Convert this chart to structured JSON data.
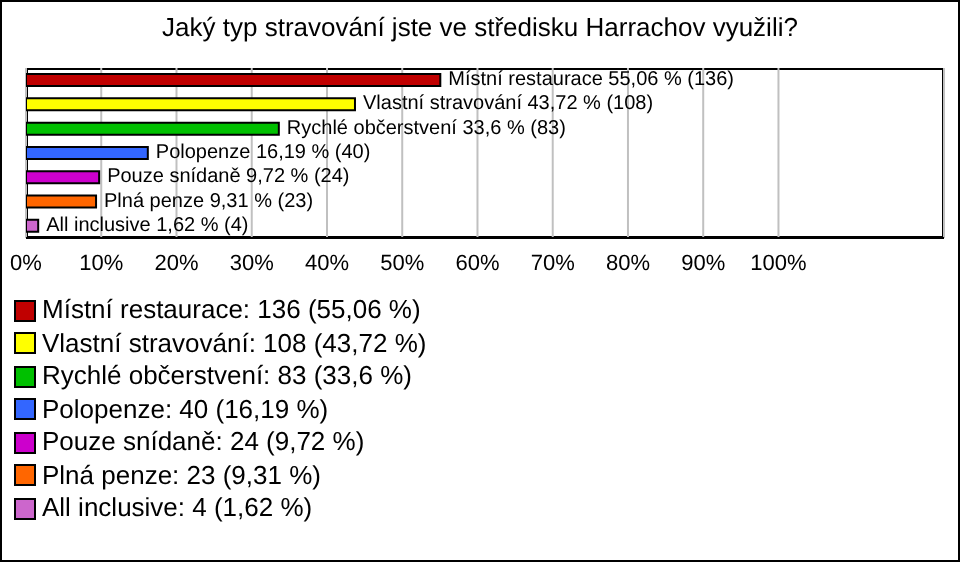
{
  "chart_data": {
    "type": "bar",
    "orientation": "horizontal",
    "title": "Jaký typ stravování jste ve středisku Harrachov využili?",
    "categories": [
      null,
      null,
      null,
      null,
      null,
      null,
      null
    ],
    "values": [
      55.06,
      43.72,
      33.6,
      16.19,
      9.72,
      9.31,
      1.62
    ],
    "colors": [
      "#c00000",
      "#ffff00",
      "#00c000",
      "#3366ff",
      "#cc00cc",
      "#ff6600",
      "#cc66cc"
    ],
    "value_labels": [
      "Místní restaurace 55,06 % (136)",
      "Vlastní stravování 43,72 % (108)",
      "Rychlé občerstvení 33,6 % (83)",
      "Polopenze 16,19 % (40)",
      "Pouze snídaně 9,72 % (24)",
      "Plná penze 9,31 % (23)",
      "All inclusive 1,62 % (4)"
    ],
    "xlim": [
      0,
      122
    ],
    "xticks": [
      {
        "value": 0,
        "label": "0%"
      },
      {
        "value": 10,
        "label": "10%"
      },
      {
        "value": 20,
        "label": "20%"
      },
      {
        "value": 30,
        "label": "30%"
      },
      {
        "value": 40,
        "label": "40%"
      },
      {
        "value": 50,
        "label": "50%"
      },
      {
        "value": 60,
        "label": "60%"
      },
      {
        "value": 70,
        "label": "70%"
      },
      {
        "value": 80,
        "label": "80%"
      },
      {
        "value": 90,
        "label": "90%"
      },
      {
        "value": 100,
        "label": "100%"
      }
    ],
    "tick_labels": "x",
    "grid": "x",
    "annotations": [
      "Místní restaurace: 136 (55,06 %)",
      "Vlastní stravování: 108 (43,72 %)",
      "Rychlé občerstvení: 83 (33,6 %)",
      "Polopenze: 40 (16,19 %)",
      "Pouze snídaně: 24 (9,72 %)",
      "Plná penze: 23 (9,31 %)",
      "All inclusive: 4 (1,62 %)"
    ]
  }
}
